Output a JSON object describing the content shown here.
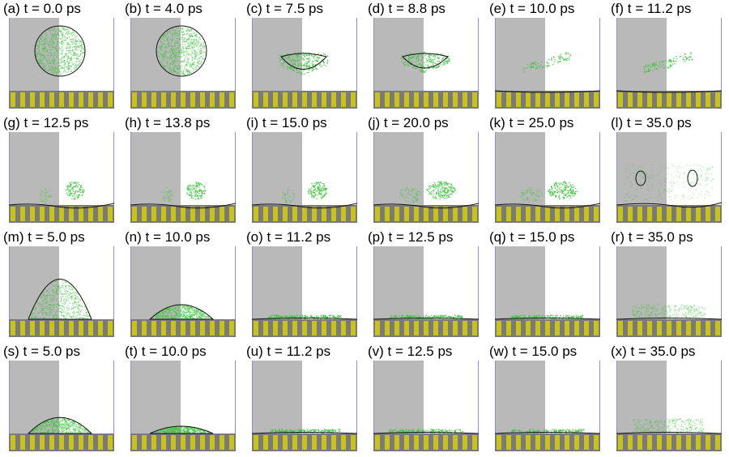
{
  "figure": {
    "panels": [
      {
        "label": "(a) t = 0.0 ps",
        "state": "sphere",
        "shell": 1.0,
        "height": 0.0
      },
      {
        "label": "(b) t = 4.0 ps",
        "state": "sphere",
        "shell": 1.0,
        "height": 0.0
      },
      {
        "label": "(c) t = 7.5 ps",
        "state": "cup",
        "shell": 0.9,
        "height": 0.0
      },
      {
        "label": "(d) t = 8.8 ps",
        "state": "cup",
        "shell": 0.6,
        "height": 0.0
      },
      {
        "label": "(e) t = 10.0 ps",
        "state": "spray",
        "shell": 0.0,
        "height": 0.0
      },
      {
        "label": "(f) t = 11.2 ps",
        "state": "spray",
        "shell": 0.0,
        "height": 0.0
      },
      {
        "label": "(g) t = 12.5 ps",
        "state": "plume",
        "shell": 0.0,
        "height": 0.0
      },
      {
        "label": "(h) t = 13.8 ps",
        "state": "plume",
        "shell": 0.0,
        "height": 0.0
      },
      {
        "label": "(i) t = 15.0 ps",
        "state": "plume",
        "shell": 0.0,
        "height": 0.0
      },
      {
        "label": "(j) t = 20.0 ps",
        "state": "cloud",
        "shell": 0.0,
        "height": 0.0
      },
      {
        "label": "(k) t = 25.0 ps",
        "state": "cloud",
        "shell": 0.0,
        "height": 0.0
      },
      {
        "label": "(l) t = 35.0 ps",
        "state": "bubbles",
        "shell": 0.0,
        "height": 0.0
      },
      {
        "label": "(m) t = 5.0 ps",
        "state": "dome",
        "shell": 1.0,
        "height": 0.55
      },
      {
        "label": "(n) t = 10.0 ps",
        "state": "dome",
        "shell": 1.0,
        "height": 0.2
      },
      {
        "label": "(o) t = 11.2 ps",
        "state": "film",
        "shell": 0.0,
        "height": 0.05
      },
      {
        "label": "(p) t = 12.5 ps",
        "state": "film",
        "shell": 0.0,
        "height": 0.04
      },
      {
        "label": "(q) t = 15.0 ps",
        "state": "film",
        "shell": 0.0,
        "height": 0.03
      },
      {
        "label": "(r) t = 35.0 ps",
        "state": "haze",
        "shell": 0.0,
        "height": 0.06
      },
      {
        "label": "(s) t = 5.0 ps",
        "state": "dome",
        "shell": 1.0,
        "height": 0.22
      },
      {
        "label": "(t) t = 10.0 ps",
        "state": "dome",
        "shell": 1.0,
        "height": 0.1
      },
      {
        "label": "(u) t = 11.2 ps",
        "state": "film",
        "shell": 0.0,
        "height": 0.03
      },
      {
        "label": "(v) t = 12.5 ps",
        "state": "film",
        "shell": 0.0,
        "height": 0.02
      },
      {
        "label": "(w) t = 15.0 ps",
        "state": "film",
        "shell": 0.0,
        "height": 0.02
      },
      {
        "label": "(x) t = 35.0 ps",
        "state": "haze",
        "shell": 0.0,
        "height": 0.04
      }
    ],
    "colors": {
      "background_left": "#b9b9b9",
      "background_right": "#ffffff",
      "substrate_yellow": "#c9c21a",
      "substrate_gray": "#7a7a7a",
      "droplet_green": "#3cc43c",
      "outline": "#111111",
      "frame_line": "#8c8cd8"
    }
  }
}
